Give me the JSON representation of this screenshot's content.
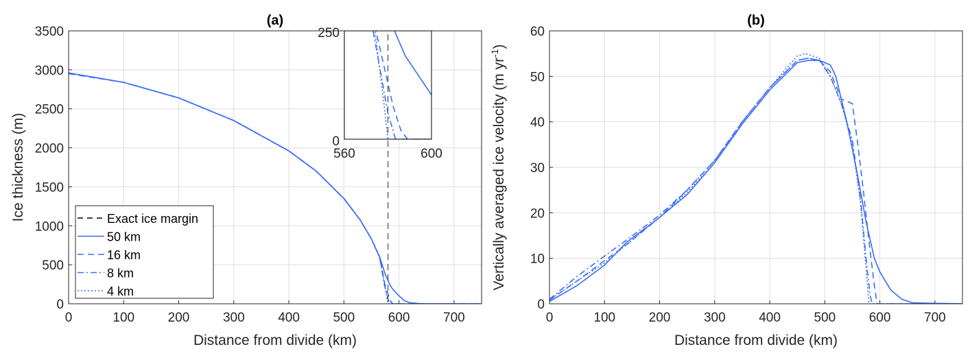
{
  "colors": {
    "series": "#3a6cf4",
    "margin": "#000000",
    "grid": "#dedede",
    "axis": "#262626"
  },
  "chart_data": [
    {
      "type": "line",
      "title": "(a)",
      "xlabel": "Distance from divide (km)",
      "ylabel": "Ice thickness (m)",
      "xlim": [
        0,
        750
      ],
      "ylim": [
        0,
        3500
      ],
      "xticks": [
        "0",
        "100",
        "200",
        "300",
        "400",
        "500",
        "600",
        "700"
      ],
      "yticks": [
        "0",
        "500",
        "1000",
        "1500",
        "2000",
        "2500",
        "3000",
        "3500"
      ],
      "grid": true,
      "legend_position": "bottom-left",
      "legend": [
        "Exact ice margin",
        "50 km",
        "16 km",
        "8 km",
        "4 km"
      ],
      "exact_margin_x": 580,
      "series": [
        {
          "name": "50 km",
          "style": "solid",
          "x": [
            0,
            100,
            200,
            300,
            400,
            450,
            500,
            530,
            550,
            565,
            575,
            583,
            588,
            600,
            610,
            620,
            640,
            660,
            750
          ],
          "y": [
            2960,
            2840,
            2640,
            2350,
            1960,
            1700,
            1350,
            1070,
            830,
            600,
            380,
            250,
            192,
            102,
            40,
            12,
            2,
            0,
            0
          ]
        },
        {
          "name": "16 km",
          "style": "dashed",
          "x": [
            0,
            100,
            200,
            300,
            400,
            450,
            500,
            530,
            550,
            565,
            574.5,
            582.4,
            586,
            589,
            600,
            750
          ],
          "y": [
            2950,
            2840,
            2640,
            2350,
            1960,
            1700,
            1350,
            1070,
            830,
            600,
            250,
            76,
            20,
            0,
            0,
            0
          ]
        },
        {
          "name": "8 km",
          "style": "dashdot",
          "x": [
            0,
            100,
            200,
            300,
            400,
            450,
            500,
            530,
            550,
            565,
            573.2,
            580,
            583.5,
            600,
            750
          ],
          "y": [
            2960,
            2840,
            2640,
            2350,
            1960,
            1700,
            1350,
            1070,
            830,
            590,
            250,
            60,
            0,
            0,
            0
          ]
        },
        {
          "name": "4 km",
          "style": "dotted",
          "x": [
            0,
            100,
            200,
            300,
            400,
            450,
            500,
            530,
            550,
            565,
            574,
            578,
            580,
            600,
            750
          ],
          "y": [
            2960,
            2840,
            2640,
            2350,
            1960,
            1700,
            1350,
            1070,
            830,
            590,
            250,
            90,
            0,
            0,
            0
          ]
        }
      ],
      "inset": {
        "xlim": [
          560,
          600
        ],
        "ylim": [
          0,
          250
        ],
        "xticks": [
          "560",
          "600"
        ],
        "yticks": [
          "0",
          "250"
        ]
      }
    },
    {
      "type": "line",
      "title": "(b)",
      "xlabel": "Distance from divide (km)",
      "ylabel": "Vertically averaged ice velocity (m yr",
      "ylabel_sup": "-1",
      "ylabel_end": ")",
      "xlim": [
        0,
        750
      ],
      "ylim": [
        0,
        60
      ],
      "xticks": [
        "0",
        "100",
        "200",
        "300",
        "400",
        "500",
        "600",
        "700"
      ],
      "yticks": [
        "0",
        "10",
        "20",
        "30",
        "40",
        "50",
        "60"
      ],
      "grid": true,
      "series": [
        {
          "name": "50 km",
          "style": "solid",
          "x": [
            0,
            50,
            100,
            140,
            200,
            250,
            300,
            350,
            400,
            450,
            470,
            490,
            510,
            520,
            540,
            560,
            575,
            590,
            600,
            620,
            640,
            660,
            750
          ],
          "y": [
            0.5,
            4,
            8.5,
            13.5,
            19,
            24,
            31,
            39.5,
            47,
            53,
            53.5,
            53.5,
            52.5,
            50,
            40,
            28,
            18,
            10,
            7,
            3,
            1,
            0.2,
            0
          ]
        },
        {
          "name": "16 km",
          "style": "dashed",
          "x": [
            0,
            50,
            100,
            140,
            200,
            250,
            300,
            350,
            400,
            450,
            470,
            490,
            510,
            530,
            550,
            560,
            570,
            580,
            590,
            595,
            750
          ],
          "y": [
            0.8,
            5,
            9.5,
            13,
            19,
            25,
            31.5,
            40,
            47.5,
            53.5,
            54,
            53.5,
            51,
            45,
            44,
            35,
            25,
            14,
            4,
            0,
            0
          ]
        },
        {
          "name": "8 km",
          "style": "dashdot",
          "x": [
            0,
            50,
            100,
            140,
            200,
            250,
            300,
            350,
            400,
            450,
            470,
            490,
            510,
            530,
            550,
            565,
            575,
            582,
            586,
            750
          ],
          "y": [
            1,
            6,
            10.5,
            14,
            19.5,
            25,
            31.5,
            40,
            47.5,
            53.5,
            54,
            53.5,
            50,
            44,
            36,
            23,
            10,
            2,
            0,
            0
          ]
        },
        {
          "name": "4 km",
          "style": "dotted",
          "x": [
            0,
            50,
            100,
            140,
            200,
            250,
            300,
            350,
            400,
            450,
            465,
            490,
            510,
            530,
            550,
            565,
            575,
            580,
            750
          ],
          "y": [
            0.8,
            5,
            9,
            13,
            19,
            24.5,
            31,
            40,
            47.5,
            54.5,
            55,
            54,
            50,
            44,
            35,
            22,
            8,
            0,
            0
          ]
        }
      ]
    }
  ]
}
